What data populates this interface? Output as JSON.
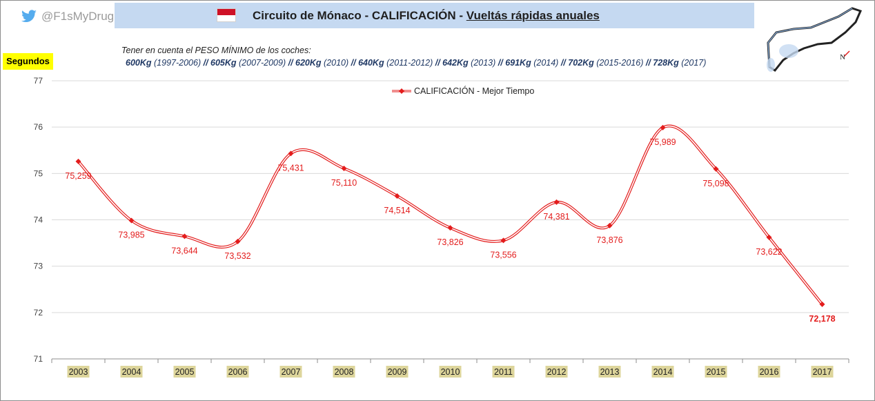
{
  "header": {
    "handle": "@F1sMyDrug",
    "title_prefix": "Circuito de  Mónaco  - CALIFICACIÓN - ",
    "title_underlined": "Vueltás rápidas  anuales",
    "note": "Tener en cuenta el PESO MÍNIMO  de los coches:",
    "weights": [
      {
        "kg": "600Kg",
        "years": " (1997-2006) ",
        "sep": "// "
      },
      {
        "kg": "605Kg",
        "years": " (2007-2009) ",
        "sep": "// "
      },
      {
        "kg": "620Kg",
        "years": " (2010) ",
        "sep": "// "
      },
      {
        "kg": "640Kg",
        "years": " (2011-2012) ",
        "sep": "// "
      },
      {
        "kg": "642Kg",
        "years": " (2013) ",
        "sep": "// "
      },
      {
        "kg": "691Kg",
        "years": " (2014) ",
        "sep": "// "
      },
      {
        "kg": "702Kg",
        "years": " (2015-2016) ",
        "sep": "// "
      },
      {
        "kg": "728Kg",
        "years": " (2017)",
        "sep": ""
      }
    ],
    "colors": {
      "title_bg": "#c5d9f1",
      "flag_red": "#ce1126",
      "ylabel_bg": "#ffff00"
    }
  },
  "chart_data": {
    "type": "line",
    "ylabel": "Segundos",
    "categories": [
      "2003",
      "2004",
      "2005",
      "2006",
      "2007",
      "2008",
      "2009",
      "2010",
      "2011",
      "2012",
      "2013",
      "2014",
      "2015",
      "2016",
      "2017"
    ],
    "series": [
      {
        "name": "CALIFICACIÓN - Mejor Tiempo",
        "values": [
          75.259,
          73.985,
          73.644,
          73.532,
          75.431,
          75.11,
          74.514,
          73.826,
          73.556,
          74.381,
          73.876,
          75.989,
          75.098,
          73.622,
          72.178
        ],
        "labels": [
          "75,259",
          "73,985",
          "73,644",
          "73,532",
          "75,431",
          "75,110",
          "74,514",
          "73,826",
          "73,556",
          "74,381",
          "73,876",
          "75,989",
          "75,098",
          "73,622",
          "72,178"
        ],
        "color": "#e31c1c"
      }
    ],
    "ylim": [
      71,
      77
    ],
    "yticks": [
      "71",
      "72",
      "73",
      "74",
      "75",
      "76",
      "77"
    ],
    "grid": true,
    "legend": "top-center",
    "category_label_bg": "#ddd59b"
  }
}
